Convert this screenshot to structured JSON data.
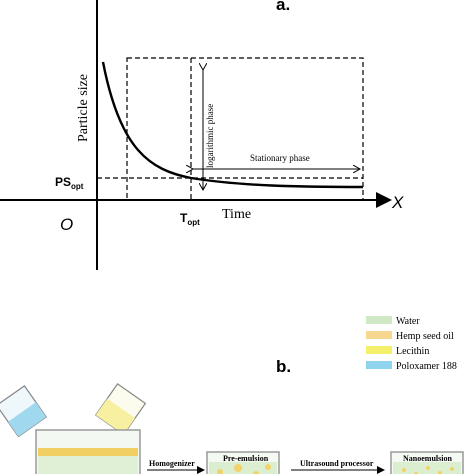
{
  "panel_a": {
    "label": "a.",
    "y_axis_label": "Particle size",
    "x_axis_label": "Time",
    "x_axis_letter": "X",
    "origin_label": "O",
    "ps_opt_main": "PS",
    "ps_opt_sub": "opt",
    "t_opt_main": "T",
    "t_opt_sub": "opt",
    "log_phase_label": "logarithmic phase",
    "stationary_phase_label": "Stationary phase"
  },
  "panel_b": {
    "label": "b.",
    "legend": [
      {
        "label": "Water",
        "color": "#cfe8c6"
      },
      {
        "label": "Hemp seed oil",
        "color": "#f7d68f"
      },
      {
        "label": "Lecithin",
        "color": "#f4f06a"
      },
      {
        "label": "Poloxamer 188",
        "color": "#8fd3ef"
      }
    ],
    "beaker_2_label": "Pre-emulsion",
    "beaker_3_label": "Nanoemulsion",
    "step_1_label": "Homogenizer",
    "step_2_label": "Ultrasound processor"
  }
}
